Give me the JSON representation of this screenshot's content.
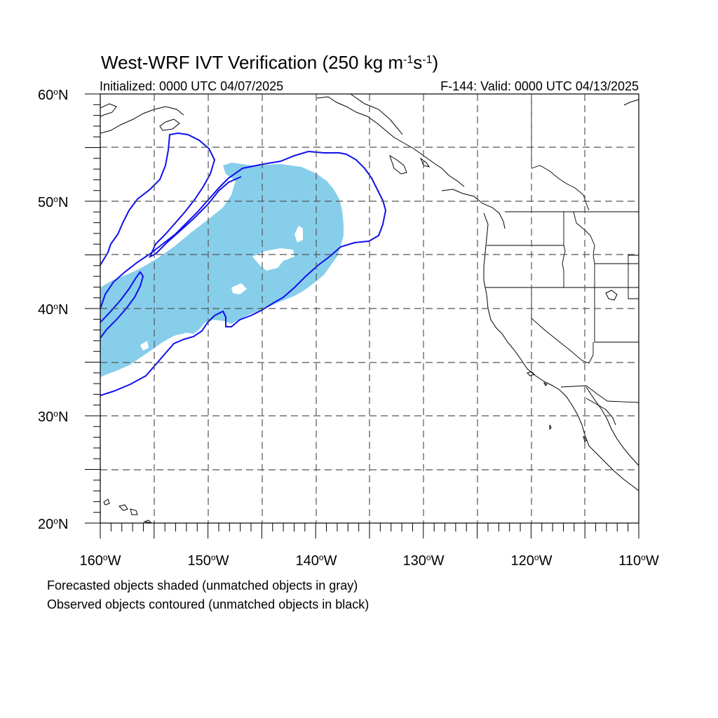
{
  "title": {
    "main": "West-WRF IVT Verification (250 kg m",
    "sup1": "-1",
    "mid": "s",
    "sup2": "-1",
    "end": ")"
  },
  "subtitle_left": "Initialized: 0000 UTC 04/07/2025",
  "subtitle_right": "F-144: Valid: 0000 UTC 04/13/2025",
  "lat_labels": [
    "60oN",
    "50oN",
    "40oN",
    "30oN",
    "20oN"
  ],
  "lat_labels_display": [
    {
      "num": "60",
      "hemi": "N"
    },
    {
      "num": "50",
      "hemi": "N"
    },
    {
      "num": "40",
      "hemi": "N"
    },
    {
      "num": "30",
      "hemi": "N"
    },
    {
      "num": "20",
      "hemi": "N"
    }
  ],
  "lon_labels_display": [
    {
      "num": "160",
      "hemi": "W"
    },
    {
      "num": "150",
      "hemi": "W"
    },
    {
      "num": "140",
      "hemi": "W"
    },
    {
      "num": "130",
      "hemi": "W"
    },
    {
      "num": "120",
      "hemi": "W"
    },
    {
      "num": "110",
      "hemi": "W"
    }
  ],
  "footnote_1": "Forecasted objects shaded (unmatched objects in gray)",
  "footnote_2": "Observed objects contoured (unmatched objects in black)",
  "map": {
    "lon_range": [
      -160,
      -110
    ],
    "lat_range": [
      20,
      60
    ],
    "grid_lon_step": 5,
    "grid_lat_step": 5,
    "forecast_color": "#87ceeb",
    "observed_color": "#1010ee",
    "grid_style": "dashed"
  }
}
